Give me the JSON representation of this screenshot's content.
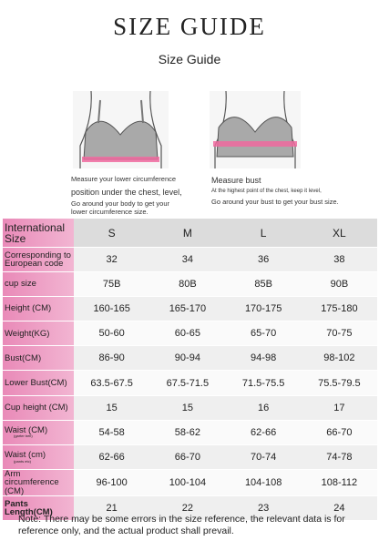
{
  "header": {
    "title": "SIZE GUIDE",
    "subtitle": "Size Guide"
  },
  "figures": [
    {
      "lines": [
        "Measure your lower circumference",
        "position under the chest, level,",
        "Go around your body to get your lower circumference size."
      ]
    },
    {
      "lines": [
        "Measure bust",
        "At the highest point of the chest, keep it level,",
        "Go around your bust to get your bust size."
      ]
    }
  ],
  "table": {
    "header": {
      "label": "International Size",
      "values": [
        "S",
        "M",
        "L",
        "XL"
      ]
    },
    "rows": [
      {
        "label": "Corresponding to European code",
        "values": [
          "32",
          "34",
          "36",
          "38"
        ]
      },
      {
        "label": "cup size",
        "values": [
          "75B",
          "80B",
          "85B",
          "90B"
        ]
      },
      {
        "label": "Height (CM)",
        "values": [
          "160-165",
          "165-170",
          "170-175",
          "175-180"
        ]
      },
      {
        "label": "Weight(KG)",
        "values": [
          "50-60",
          "60-65",
          "65-70",
          "70-75"
        ]
      },
      {
        "label": "Bust(CM)",
        "values": [
          "86-90",
          "90-94",
          "94-98",
          "98-102"
        ]
      },
      {
        "label": "Lower Bust(CM)",
        "values": [
          "63.5-67.5",
          "67.5-71.5",
          "71.5-75.5",
          "75.5-79.5"
        ]
      },
      {
        "label": "Cup height (CM)",
        "values": [
          "15",
          "15",
          "16",
          "17"
        ]
      },
      {
        "label": "Waist (CM)",
        "note": "(garter belt)",
        "values": [
          "54-58",
          "58-62",
          "62-66",
          "66-70"
        ]
      },
      {
        "label": "Waist (cm)",
        "note": "(pants etc)",
        "values": [
          "62-66",
          "66-70",
          "70-74",
          "74-78"
        ]
      },
      {
        "label": "Arm circumference (CM)",
        "values": [
          "96-100",
          "100-104",
          "104-108",
          "108-112"
        ]
      },
      {
        "label": "Pants Length(CM)",
        "values": [
          "21",
          "22",
          "23",
          "24"
        ]
      }
    ]
  },
  "note": "Note: There may be some errors in the size reference, the relevant data is for reference only, and the actual product shall prevail."
}
